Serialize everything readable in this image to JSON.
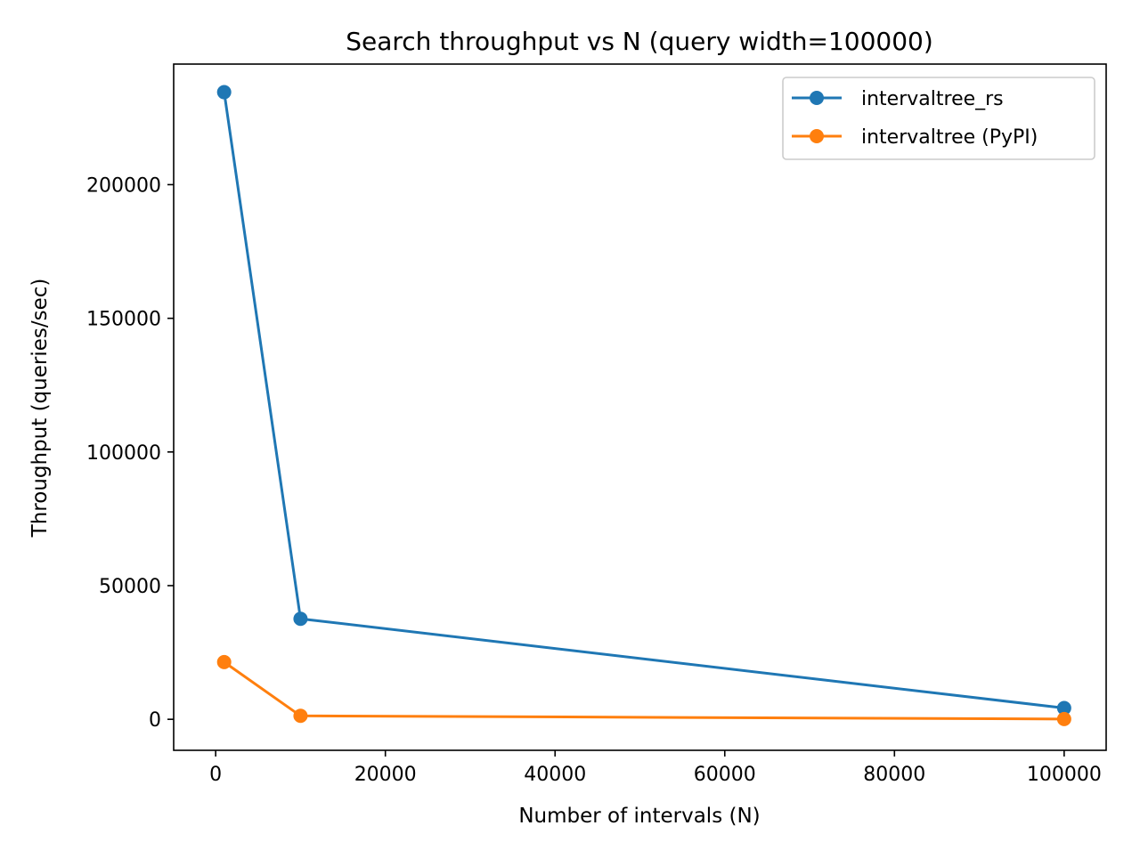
{
  "chart_data": {
    "type": "line",
    "title": "Search throughput vs N (query width=100000)",
    "xlabel": "Number of intervals (N)",
    "ylabel": "Throughput (queries/sec)",
    "xlim": [
      -4950,
      104950
    ],
    "ylim": [
      -11600,
      245100
    ],
    "xticks": [
      0,
      20000,
      40000,
      60000,
      80000,
      100000
    ],
    "xtick_labels": [
      "0",
      "20000",
      "40000",
      "60000",
      "80000",
      "100000"
    ],
    "yticks": [
      0,
      50000,
      100000,
      150000,
      200000
    ],
    "ytick_labels": [
      "0",
      "50000",
      "100000",
      "150000",
      "200000"
    ],
    "grid": false,
    "legend": "top-right",
    "x": [
      1000,
      10000,
      100000
    ],
    "series": [
      {
        "name": "intervaltree_rs",
        "values": [
          234600,
          37600,
          4200
        ],
        "color": "#1f77b4",
        "marker": "circle"
      },
      {
        "name": "intervaltree (PyPI)",
        "values": [
          21400,
          1300,
          100
        ],
        "color": "#ff7f0e",
        "marker": "circle"
      }
    ]
  }
}
